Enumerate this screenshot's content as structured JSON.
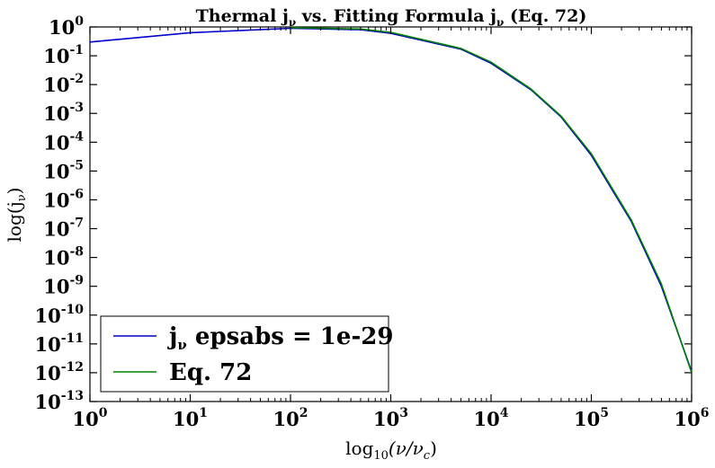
{
  "chart_data": {
    "type": "line",
    "title": "Thermal jν vs. Fitting Formula jν (Eq. 72)",
    "title_parts": {
      "before": "Thermal j",
      "sub1": "ν",
      "middle": " vs. Fitting Formula j",
      "sub2": "ν",
      "after": " (Eq. 72)"
    },
    "xlabel": "log10(ν/νc)",
    "xlabel_parts": {
      "pre": "log",
      "sub": "10",
      "mid": "(ν/ν",
      "sub2": "c",
      "post": ")"
    },
    "ylabel": "log(jν)",
    "ylabel_parts": {
      "pre": "log(j",
      "sub": "ν",
      "post": ")"
    },
    "xscale": "log",
    "yscale": "log",
    "xlim": [
      1,
      1000000
    ],
    "ylim": [
      1e-13,
      1
    ],
    "x_ticks": [
      {
        "exp": 0
      },
      {
        "exp": 1
      },
      {
        "exp": 2
      },
      {
        "exp": 3
      },
      {
        "exp": 4
      },
      {
        "exp": 5
      },
      {
        "exp": 6
      }
    ],
    "y_ticks": [
      {
        "exp": 0
      },
      {
        "exp": -1
      },
      {
        "exp": -2
      },
      {
        "exp": -3
      },
      {
        "exp": -4
      },
      {
        "exp": -5
      },
      {
        "exp": -6
      },
      {
        "exp": -7
      },
      {
        "exp": -8
      },
      {
        "exp": -9
      },
      {
        "exp": -10
      },
      {
        "exp": -11
      },
      {
        "exp": -12
      },
      {
        "exp": -13
      }
    ],
    "tick_base": "10",
    "grid": false,
    "legend_position": "bottom-left",
    "series": [
      {
        "name": "jν epsabs = 1e-29",
        "name_parts": {
          "pre": "j",
          "sub": "ν",
          "post": " epsabs = 1e-29"
        },
        "color": "#0000cc",
        "x": [
          1,
          10,
          100,
          500,
          1000,
          5000,
          10000,
          25000,
          50000,
          100000,
          250000,
          500000,
          1000000
        ],
        "y": [
          0.3,
          0.63,
          0.9,
          0.8,
          0.6,
          0.17,
          0.055,
          0.0066,
          0.00075,
          3.5e-05,
          1.8e-07,
          1e-09,
          1.1e-12
        ]
      },
      {
        "name": "Eq. 72",
        "name_parts": {
          "pre": "Eq. 72",
          "sub": "",
          "post": ""
        },
        "color": "#008000",
        "x": [
          100,
          500,
          1000,
          5000,
          10000,
          25000,
          50000,
          100000,
          250000,
          500000,
          1000000
        ],
        "y": [
          0.95,
          0.85,
          0.65,
          0.18,
          0.06,
          0.007,
          0.0008,
          4e-05,
          2e-07,
          1.2e-09,
          1e-12
        ]
      }
    ]
  }
}
